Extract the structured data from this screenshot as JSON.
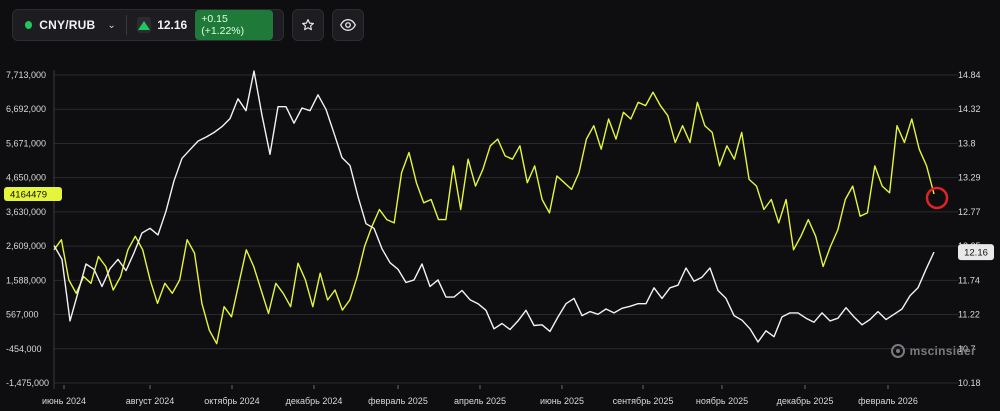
{
  "toolbar": {
    "symbol": "CNY/RUB",
    "price": "12.16",
    "change": "+0.15 (+1.22%)",
    "change_color": "#22c55e",
    "dropdown_icon": "chevron-down-icon",
    "price_direction_icon": "up-triangle-icon",
    "favorite_icon": "star-icon",
    "visibility_icon": "eye-icon"
  },
  "watermark": {
    "text": "mscinsider"
  },
  "chart_data": {
    "type": "line",
    "title": "",
    "x_labels": [
      "июнь 2024",
      "август 2024",
      "октябрь 2024",
      "декабрь 2024",
      "февраль 2025",
      "апрель 2025",
      "июнь 2025",
      "сентябрь 2025",
      "ноябрь 2025",
      "декабрь 2025",
      "февраль 2026"
    ],
    "left_axis": {
      "ticks": [
        "7,713,000",
        "6,692,000",
        "5,671,000",
        "4,650,000",
        "3,630,000",
        "2,609,000",
        "1,588,000",
        "567,000",
        "-454,000",
        "-1,475,000"
      ],
      "range": [
        -1475000,
        7713000
      ],
      "marker_label": "4164479",
      "marker_value": 4164479,
      "marker_color": "#e4f53b"
    },
    "right_axis": {
      "ticks": [
        "14.84",
        "14.32",
        "13.8",
        "13.29",
        "12.77",
        "12.25",
        "11.74",
        "11.22",
        "10.7",
        "10.18"
      ],
      "range": [
        10.18,
        14.84
      ],
      "last_price_label": "12.16",
      "last_price_value": 12.16
    },
    "grid": true,
    "series": [
      {
        "axis": "left",
        "color": "#e4f53b",
        "values": [
          2500000,
          2800000,
          1600000,
          1200000,
          1700000,
          1500000,
          2300000,
          2000000,
          1300000,
          1700000,
          2500000,
          2900000,
          2500000,
          1600000,
          900000,
          1500000,
          1200000,
          1600000,
          2800000,
          2400000,
          900000,
          100000,
          -300000,
          800000,
          500000,
          1500000,
          2500000,
          2000000,
          1300000,
          600000,
          1500000,
          1200000,
          800000,
          2100000,
          1600000,
          800000,
          1800000,
          1000000,
          1300000,
          700000,
          1000000,
          1700000,
          2600000,
          3200000,
          3700000,
          3400000,
          3300000,
          4800000,
          5400000,
          4500000,
          3900000,
          4000000,
          3400000,
          3400000,
          5000000,
          3700000,
          5200000,
          4400000,
          4900000,
          5600000,
          5800000,
          5300000,
          5200000,
          5600000,
          4500000,
          5000000,
          4000000,
          3600000,
          4700000,
          4500000,
          4300000,
          4800000,
          5800000,
          6200000,
          5500000,
          6400000,
          5800000,
          6600000,
          6400000,
          6900000,
          6800000,
          7200000,
          6800000,
          6500000,
          5700000,
          6200000,
          5700000,
          6900000,
          6200000,
          6000000,
          5000000,
          5600000,
          5200000,
          6000000,
          4600000,
          4400000,
          3700000,
          4000000,
          3300000,
          4000000,
          2500000,
          2900000,
          3400000,
          2900000,
          2000000,
          2600000,
          3100000,
          4000000,
          4400000,
          3500000,
          3600000,
          5000000,
          4400000,
          4200000,
          6200000,
          5700000,
          6400000,
          5500000,
          5000000,
          4164479
        ]
      },
      {
        "axis": "right",
        "color": "#f2f2f2",
        "values": [
          12.26,
          12.05,
          11.12,
          11.55,
          11.98,
          11.9,
          11.64,
          11.91,
          12.05,
          11.88,
          12.15,
          12.45,
          12.52,
          12.42,
          12.78,
          13.24,
          13.58,
          13.71,
          13.84,
          13.9,
          13.97,
          14.06,
          14.18,
          14.48,
          14.3,
          14.9,
          14.23,
          13.64,
          14.36,
          14.36,
          14.11,
          14.34,
          14.3,
          14.54,
          14.32,
          13.96,
          13.59,
          13.47,
          13.0,
          12.59,
          12.52,
          12.21,
          12.0,
          11.9,
          11.7,
          11.74,
          11.98,
          11.64,
          11.74,
          11.48,
          11.48,
          11.58,
          11.44,
          11.38,
          11.28,
          11.0,
          11.08,
          10.99,
          11.12,
          11.28,
          11.05,
          11.06,
          10.96,
          11.18,
          11.38,
          11.46,
          11.2,
          11.26,
          11.22,
          11.3,
          11.24,
          11.31,
          11.34,
          11.38,
          11.38,
          11.62,
          11.46,
          11.62,
          11.66,
          11.92,
          11.72,
          11.78,
          11.92,
          11.58,
          11.46,
          11.2,
          11.13,
          11.0,
          10.8,
          10.97,
          10.88,
          11.18,
          11.24,
          11.24,
          11.16,
          11.1,
          11.24,
          11.12,
          11.16,
          11.32,
          11.18,
          11.06,
          11.14,
          11.26,
          11.14,
          11.22,
          11.3,
          11.5,
          11.62,
          11.9,
          12.16
        ]
      }
    ]
  }
}
